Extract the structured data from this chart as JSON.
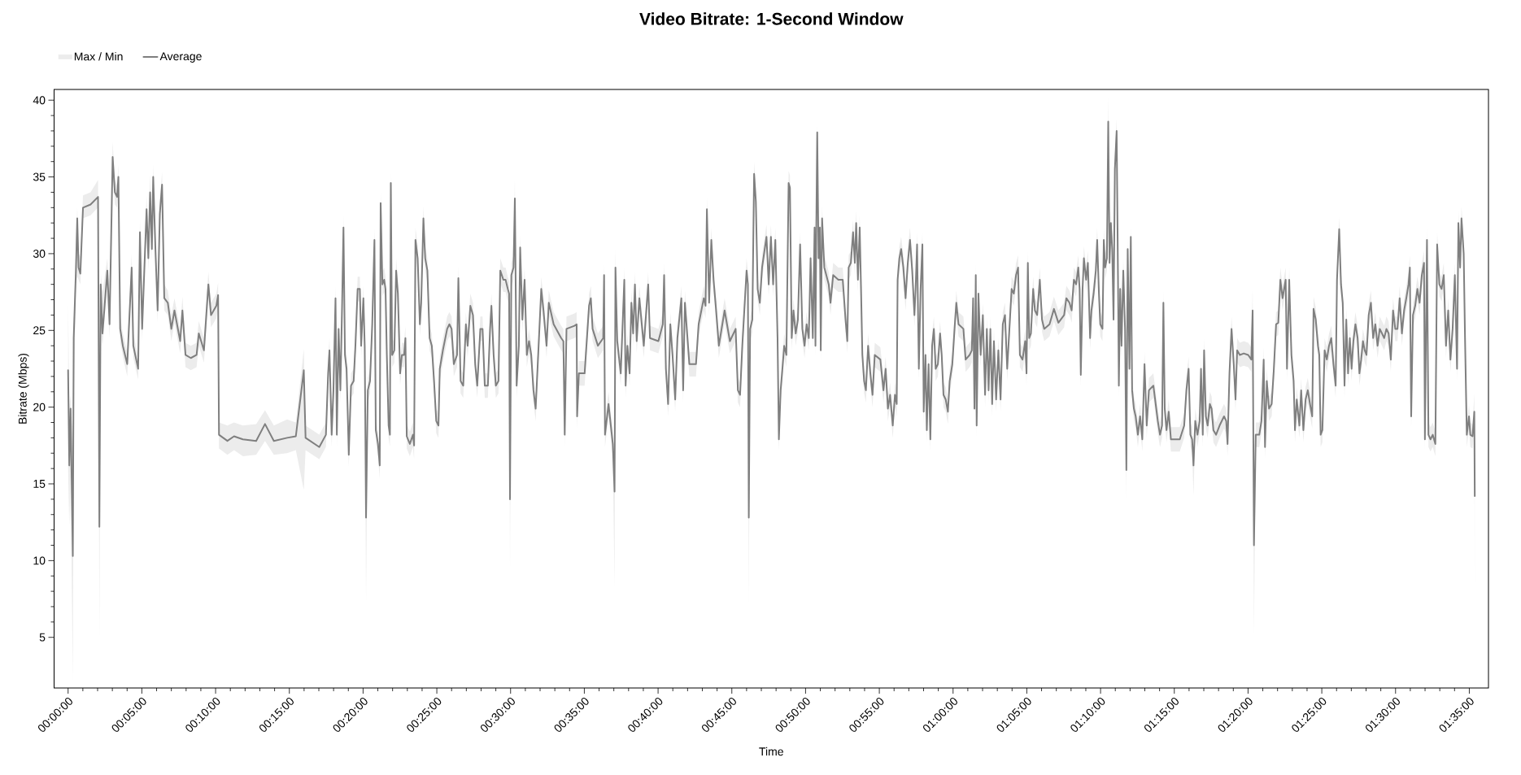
{
  "chart_data": {
    "type": "line",
    "title": "Video Bitrate: 1-Second Window",
    "xlabel": "Time",
    "ylabel": "Bitrate (Mbps)",
    "legend": "top left",
    "annotations": [
      "Max / Min"
    ],
    "xlim": [
      -0.95,
      96.3
    ],
    "ylim": [
      1.7,
      40.7
    ],
    "xticks": [
      {
        "value": 0,
        "label": "00:00:00"
      },
      {
        "value": 5,
        "label": "00:05:00"
      },
      {
        "value": 10,
        "label": "00:10:00"
      },
      {
        "value": 15,
        "label": "00:15:00"
      },
      {
        "value": 20,
        "label": "00:20:00"
      },
      {
        "value": 25,
        "label": "00:25:00"
      },
      {
        "value": 30,
        "label": "00:30:00"
      },
      {
        "value": 35,
        "label": "00:35:00"
      },
      {
        "value": 40,
        "label": "00:40:00"
      },
      {
        "value": 45,
        "label": "00:45:00"
      },
      {
        "value": 50,
        "label": "00:50:00"
      },
      {
        "value": 55,
        "label": "00:55:00"
      },
      {
        "value": 60,
        "label": "01:00:00"
      },
      {
        "value": 65,
        "label": "01:05:00"
      },
      {
        "value": 70,
        "label": "01:10:00"
      },
      {
        "value": 75,
        "label": "01:15:00"
      },
      {
        "value": 80,
        "label": "01:20:00"
      },
      {
        "value": 85,
        "label": "01:25:00"
      },
      {
        "value": 90,
        "label": "01:30:00"
      },
      {
        "value": 95,
        "label": "01:35:00"
      }
    ],
    "yticks": [
      5,
      10,
      15,
      20,
      25,
      30,
      35,
      40
    ],
    "x": [
      0.0,
      0.08,
      0.17,
      0.32,
      0.38,
      0.53,
      0.62,
      0.71,
      0.83,
      1.01,
      1.52,
      2.03,
      2.12,
      2.21,
      2.33,
      2.66,
      2.81,
      3.02,
      3.17,
      3.32,
      3.41,
      3.53,
      3.71,
      4.01,
      4.31,
      4.42,
      4.75,
      4.87,
      5.02,
      5.32,
      5.44,
      5.56,
      5.68,
      5.77,
      5.92,
      6.07,
      6.22,
      6.37,
      6.52,
      6.76,
      7.0,
      7.21,
      7.6,
      7.75,
      7.96,
      8.32,
      8.71,
      8.86,
      9.21,
      9.51,
      9.69,
      10.05,
      10.17,
      10.23,
      10.8,
      11.25,
      11.85,
      12.75,
      13.35,
      13.95,
      14.85,
      15.44,
      15.98,
      16.1,
      17.03,
      17.48,
      17.63,
      17.72,
      17.87,
      17.99,
      18.13,
      18.22,
      18.34,
      18.46,
      18.58,
      18.67,
      18.77,
      18.88,
      19.03,
      19.18,
      19.36,
      19.48,
      19.63,
      19.78,
      19.87,
      20.02,
      20.11,
      20.2,
      20.32,
      20.47,
      20.62,
      20.77,
      20.86,
      21.01,
      21.13,
      21.19,
      21.31,
      21.43,
      21.52,
      21.61,
      21.73,
      21.82,
      21.88,
      21.97,
      22.12,
      22.24,
      22.36,
      22.51,
      22.63,
      22.78,
      22.87,
      22.96,
      23.17,
      23.38,
      23.46,
      23.55,
      23.7,
      23.85,
      23.94,
      24.09,
      24.21,
      24.36,
      24.51,
      24.66,
      24.81,
      24.96,
      25.11,
      25.2,
      25.41,
      25.7,
      25.85,
      26.0,
      26.15,
      26.37,
      26.46,
      26.61,
      26.79,
      26.97,
      27.09,
      27.27,
      27.45,
      27.6,
      27.74,
      27.95,
      28.1,
      28.25,
      28.46,
      28.61,
      28.7,
      28.85,
      29.0,
      29.18,
      29.3,
      29.51,
      29.66,
      29.81,
      29.9,
      29.96,
      30.05,
      30.2,
      30.29,
      30.41,
      30.56,
      30.65,
      30.8,
      30.95,
      31.1,
      31.25,
      31.4,
      31.55,
      31.7,
      32.08,
      32.23,
      32.44,
      32.59,
      32.92,
      33.43,
      33.58,
      33.67,
      33.79,
      34.33,
      34.48,
      34.51,
      34.63,
      35.02,
      35.32,
      35.44,
      35.56,
      35.92,
      36.28,
      36.34,
      36.4,
      36.64,
      36.93,
      37.05,
      37.11,
      37.23,
      37.47,
      37.62,
      37.71,
      37.8,
      37.92,
      38.07,
      38.19,
      38.31,
      38.43,
      38.55,
      38.73,
      39.03,
      39.33,
      39.45,
      40.02,
      40.32,
      40.41,
      40.53,
      40.68,
      40.83,
      40.98,
      41.16,
      41.31,
      41.58,
      41.7,
      41.82,
      42.12,
      42.57,
      42.75,
      43.1,
      43.22,
      43.31,
      43.46,
      43.61,
      43.76,
      43.91,
      44.12,
      44.51,
      44.87,
      45.26,
      45.41,
      45.56,
      45.71,
      46.0,
      46.09,
      46.15,
      46.24,
      46.39,
      46.51,
      46.63,
      46.75,
      46.9,
      47.05,
      47.35,
      47.5,
      47.65,
      47.8,
      47.95,
      48.1,
      48.19,
      48.31,
      48.43,
      48.55,
      48.7,
      48.85,
      48.94,
      49.06,
      49.18,
      49.33,
      49.48,
      49.63,
      49.78,
      49.93,
      50.07,
      50.22,
      50.34,
      50.49,
      50.61,
      50.67,
      50.73,
      50.79,
      50.88,
      50.97,
      51.03,
      51.12,
      51.27,
      51.57,
      51.69,
      51.87,
      52.22,
      52.52,
      52.71,
      52.83,
      52.92,
      53.07,
      53.22,
      53.34,
      53.43,
      53.55,
      53.67,
      53.76,
      53.85,
      53.97,
      54.09,
      54.24,
      54.39,
      54.54,
      54.69,
      55.07,
      55.28,
      55.43,
      55.58,
      55.73,
      55.91,
      56.06,
      56.18,
      56.24,
      56.36,
      56.48,
      56.63,
      56.78,
      56.93,
      57.08,
      57.23,
      57.38,
      57.46,
      57.56,
      57.68,
      57.8,
      57.92,
      58.01,
      58.13,
      58.22,
      58.34,
      58.46,
      58.58,
      58.7,
      58.82,
      58.97,
      59.12,
      59.23,
      59.35,
      59.5,
      59.65,
      59.77,
      59.95,
      60.1,
      60.22,
      60.37,
      60.7,
      60.85,
      61.12,
      61.27,
      61.36,
      61.45,
      61.54,
      61.6,
      61.72,
      61.87,
      62.02,
      62.17,
      62.29,
      62.41,
      62.53,
      62.65,
      62.77,
      62.92,
      63.07,
      63.22,
      63.37,
      63.52,
      63.67,
      63.82,
      63.97,
      64.12,
      64.27,
      64.41,
      64.53,
      64.71,
      64.89,
      64.98,
      65.07,
      65.16,
      65.28,
      65.43,
      65.55,
      65.7,
      65.88,
      66.03,
      66.18,
      66.54,
      66.84,
      67.14,
      67.53,
      67.68,
      67.89,
      68.04,
      68.19,
      68.34,
      68.49,
      68.58,
      68.66,
      68.78,
      68.87,
      69.02,
      69.14,
      69.29,
      69.38,
      69.53,
      69.68,
      69.77,
      69.89,
      69.98,
      70.13,
      70.22,
      70.31,
      70.43,
      70.52,
      70.61,
      70.7,
      70.79,
      70.88,
      70.97,
      71.09,
      71.18,
      71.24,
      71.33,
      71.42,
      71.54,
      71.66,
      71.75,
      71.84,
      71.96,
      72.05,
      72.14,
      72.26,
      72.38,
      72.53,
      72.68,
      72.83,
      72.98,
      73.13,
      73.28,
      73.58,
      73.88,
      74.03,
      74.17,
      74.26,
      74.35,
      74.47,
      74.62,
      74.77,
      75.07,
      75.37,
      75.67,
      75.82,
      75.97,
      76.09,
      76.21,
      76.3,
      76.42,
      76.57,
      76.72,
      76.81,
      76.93,
      77.02,
      77.14,
      77.26,
      77.41,
      77.53,
      77.65,
      77.83,
      78.07,
      78.37,
      78.52,
      78.61,
      78.74,
      78.88,
      79.03,
      79.15,
      79.26,
      79.44,
      79.71,
      80.01,
      80.22,
      80.31,
      80.4,
      80.52,
      80.76,
      80.91,
      81.06,
      81.15,
      81.27,
      81.42,
      81.6,
      81.75,
      81.9,
      82.05,
      82.19,
      82.34,
      82.55,
      82.64,
      82.79,
      82.94,
      83.09,
      83.18,
      83.3,
      83.48,
      83.6,
      83.75,
      83.9,
      84.05,
      84.2,
      84.35,
      84.44,
      84.59,
      84.74,
      84.83,
      84.92,
      85.04,
      85.19,
      85.34,
      85.49,
      85.64,
      85.79,
      85.94,
      86.03,
      86.18,
      86.3,
      86.42,
      86.54,
      86.66,
      86.78,
      86.9,
      87.02,
      87.14,
      87.28,
      87.43,
      87.55,
      87.67,
      87.79,
      87.91,
      88.03,
      88.18,
      88.33,
      88.48,
      88.63,
      88.78,
      88.93,
      89.08,
      89.23,
      89.38,
      89.53,
      89.68,
      89.83,
      89.98,
      90.13,
      90.28,
      90.43,
      90.58,
      90.73,
      90.88,
      90.97,
      91.06,
      91.18,
      91.33,
      91.48,
      91.63,
      91.78,
      91.93,
      91.99,
      92.13,
      92.23,
      92.37,
      92.52,
      92.7,
      92.82,
      92.97,
      93.12,
      93.27,
      93.42,
      93.57,
      93.72,
      93.87,
      94.02,
      94.17,
      94.26,
      94.38,
      94.47,
      94.62,
      94.71,
      94.83,
      94.98,
      95.07,
      95.22,
      95.34,
      95.37
    ],
    "series": [
      {
        "name": "Average",
        "type": "line",
        "color": "#7f7f7f",
        "values": [
          22.4,
          16.2,
          19.9,
          10.3,
          24.5,
          28.9,
          32.3,
          29.1,
          28.7,
          33.0,
          33.2,
          33.7,
          12.2,
          28.0,
          24.8,
          28.9,
          25.4,
          36.3,
          34.0,
          33.7,
          35.0,
          25.1,
          24.0,
          22.8,
          29.1,
          24.0,
          22.5,
          31.4,
          25.1,
          32.9,
          29.7,
          34.0,
          30.3,
          35.0,
          30.3,
          26.3,
          32.6,
          34.5,
          27.1,
          26.8,
          25.1,
          26.3,
          24.3,
          26.3,
          23.4,
          23.2,
          23.4,
          24.8,
          23.7,
          28.0,
          26.0,
          26.6,
          27.3,
          18.2,
          17.8,
          18.1,
          17.9,
          17.8,
          18.9,
          17.8,
          18.0,
          18.1,
          22.4,
          18.0,
          17.4,
          18.2,
          22.2,
          23.7,
          18.2,
          21.1,
          27.1,
          18.2,
          25.1,
          21.1,
          26.8,
          31.7,
          23.4,
          22.5,
          16.9,
          21.4,
          21.7,
          24.0,
          27.7,
          27.7,
          24.0,
          27.1,
          24.0,
          12.8,
          21.1,
          21.7,
          25.4,
          30.9,
          18.5,
          17.6,
          16.2,
          33.3,
          28.0,
          28.3,
          27.7,
          23.4,
          18.8,
          18.2,
          34.6,
          23.4,
          23.7,
          28.9,
          27.4,
          22.2,
          23.4,
          23.4,
          24.5,
          18.1,
          17.6,
          18.2,
          17.5,
          30.9,
          29.7,
          25.4,
          26.8,
          32.3,
          29.7,
          28.9,
          24.5,
          24.0,
          21.7,
          19.1,
          18.8,
          22.5,
          23.7,
          25.1,
          25.4,
          25.1,
          22.8,
          23.4,
          28.4,
          21.7,
          21.4,
          25.4,
          24.0,
          26.6,
          26.0,
          22.8,
          21.4,
          25.1,
          25.1,
          21.4,
          21.4,
          25.1,
          26.6,
          23.4,
          21.4,
          21.7,
          28.9,
          28.3,
          28.3,
          27.7,
          27.4,
          14.0,
          28.6,
          29.1,
          33.6,
          21.4,
          24.0,
          30.4,
          25.7,
          28.3,
          23.4,
          24.3,
          23.4,
          21.1,
          19.9,
          27.7,
          26.3,
          24.0,
          26.8,
          25.4,
          24.5,
          24.3,
          18.2,
          25.1,
          25.3,
          25.4,
          19.4,
          22.2,
          22.2,
          26.6,
          27.1,
          25.1,
          24.0,
          24.5,
          28.6,
          18.2,
          20.2,
          17.6,
          14.5,
          29.1,
          24.3,
          22.2,
          26.0,
          28.3,
          21.4,
          24.0,
          22.2,
          26.8,
          24.8,
          28.0,
          24.3,
          27.1,
          24.0,
          28.0,
          24.5,
          24.3,
          25.4,
          28.6,
          22.5,
          20.2,
          25.4,
          23.4,
          20.5,
          24.5,
          27.1,
          21.1,
          26.8,
          22.8,
          22.8,
          25.4,
          27.1,
          26.6,
          32.9,
          26.8,
          30.9,
          28.3,
          26.6,
          24.0,
          26.3,
          24.3,
          25.1,
          21.1,
          20.8,
          24.0,
          28.9,
          28.0,
          12.8,
          25.1,
          25.7,
          35.2,
          33.4,
          27.7,
          26.8,
          29.1,
          31.1,
          28.0,
          31.1,
          28.0,
          30.9,
          24.5,
          17.9,
          21.1,
          22.5,
          24.0,
          23.4,
          34.6,
          34.3,
          24.5,
          26.3,
          24.8,
          25.7,
          30.6,
          25.1,
          24.0,
          25.4,
          24.5,
          29.7,
          24.5,
          31.7,
          24.0,
          32.0,
          37.9,
          29.7,
          31.7,
          23.7,
          32.3,
          29.1,
          28.0,
          26.8,
          28.6,
          28.3,
          28.3,
          25.7,
          24.3,
          29.1,
          29.4,
          31.4,
          29.4,
          32.0,
          28.3,
          31.7,
          27.7,
          23.4,
          21.7,
          21.1,
          24.0,
          22.2,
          20.8,
          23.4,
          23.1,
          21.1,
          22.5,
          19.9,
          20.8,
          18.8,
          20.8,
          20.2,
          28.3,
          29.7,
          30.3,
          29.1,
          27.1,
          29.4,
          30.9,
          28.9,
          26.0,
          27.7,
          30.6,
          22.5,
          27.7,
          30.6,
          19.7,
          23.4,
          18.5,
          22.8,
          17.9,
          24.0,
          25.1,
          22.5,
          22.8,
          24.8,
          23.4,
          20.8,
          20.5,
          19.7,
          21.7,
          22.8,
          25.1,
          26.8,
          25.4,
          25.1,
          23.1,
          23.4,
          23.7,
          27.1,
          19.9,
          28.6,
          18.8,
          27.4,
          23.4,
          26.0,
          20.8,
          25.1,
          21.1,
          25.1,
          20.2,
          24.3,
          20.5,
          23.7,
          20.5,
          25.4,
          26.0,
          22.5,
          25.1,
          27.7,
          27.4,
          28.6,
          29.1,
          23.4,
          23.1,
          24.3,
          22.2,
          29.4,
          24.5,
          24.8,
          27.7,
          26.3,
          26.0,
          28.3,
          25.7,
          25.1,
          25.4,
          26.4,
          25.5,
          26.0,
          27.1,
          26.8,
          26.3,
          28.3,
          28.0,
          29.1,
          27.7,
          22.1,
          27.7,
          29.7,
          28.3,
          29.4,
          24.5,
          26.3,
          27.4,
          28.9,
          30.9,
          27.4,
          25.4,
          25.1,
          30.9,
          29.1,
          29.7,
          38.6,
          29.4,
          32.0,
          30.3,
          25.7,
          35.5,
          38.0,
          28.6,
          21.4,
          27.7,
          24.0,
          28.9,
          25.1,
          15.9,
          30.3,
          22.5,
          31.1,
          21.1,
          19.9,
          19.4,
          18.2,
          19.4,
          17.9,
          22.8,
          18.8,
          21.1,
          21.4,
          19.1,
          18.2,
          18.8,
          26.8,
          19.9,
          18.5,
          19.7,
          17.9,
          17.9,
          17.9,
          18.8,
          21.1,
          22.5,
          18.2,
          17.9,
          16.2,
          19.1,
          18.2,
          19.1,
          22.5,
          18.2,
          23.7,
          19.4,
          18.8,
          20.2,
          19.9,
          18.5,
          18.2,
          18.8,
          19.4,
          19.1,
          17.6,
          22.2,
          25.1,
          22.8,
          20.5,
          23.7,
          23.4,
          23.5,
          23.4,
          23.1,
          26.3,
          11.0,
          18.2,
          18.2,
          19.1,
          23.1,
          17.4,
          21.7,
          19.9,
          20.2,
          22.5,
          25.4,
          25.5,
          28.3,
          27.1,
          28.3,
          22.5,
          28.3,
          23.4,
          21.7,
          18.5,
          20.5,
          18.8,
          21.1,
          18.5,
          20.5,
          21.1,
          20.2,
          19.4,
          26.4,
          25.7,
          24.0,
          23.4,
          18.2,
          18.5,
          23.7,
          23.1,
          24.0,
          24.5,
          22.8,
          21.4,
          28.3,
          31.6,
          28.0,
          26.8,
          21.4,
          25.7,
          22.2,
          24.5,
          22.5,
          24.3,
          25.4,
          24.5,
          22.2,
          23.1,
          24.3,
          23.7,
          23.4,
          26.0,
          26.8,
          24.5,
          25.4,
          24.0,
          25.1,
          24.8,
          24.5,
          25.1,
          24.8,
          23.1,
          26.3,
          25.1,
          25.1,
          27.1,
          24.8,
          26.3,
          27.1,
          28.0,
          29.1,
          19.4,
          26.0,
          26.6,
          27.7,
          26.8,
          28.6,
          29.4,
          17.9,
          30.9,
          18.2,
          17.9,
          18.2,
          17.6,
          30.6,
          28.0,
          27.7,
          28.6,
          24.0,
          26.3,
          23.1,
          25.1,
          28.6,
          22.5,
          32.0,
          29.1,
          32.3,
          30.0,
          24.5,
          18.2,
          19.4,
          18.2,
          18.1,
          19.7,
          14.2
        ],
        "upper": [
          26.8,
          19.9,
          20.8,
          17.0,
          25.5,
          30.5,
          33.0,
          30.0,
          29.8,
          33.8,
          34.0,
          34.8,
          13.0,
          28.8,
          27.5,
          29.7,
          27.0,
          37.3,
          34.8,
          34.5,
          35.8,
          26.0,
          24.8,
          23.6,
          30.0,
          24.8,
          23.3,
          32.3,
          26.0,
          33.8,
          30.5,
          35.2,
          31.2,
          35.8,
          31.1,
          27.2,
          33.5,
          35.3,
          28.0,
          27.6,
          26.0,
          27.1,
          25.1,
          27.2,
          24.2,
          24.0,
          24.2,
          25.6,
          24.5,
          28.8,
          26.8,
          27.4,
          28.1,
          19.0,
          18.8,
          19.0,
          18.8,
          18.9,
          19.8,
          18.8,
          19.2,
          19.0,
          23.8,
          18.8,
          18.2,
          19.0,
          23.0,
          24.5,
          19.0,
          21.9,
          27.9,
          19.0,
          25.9,
          21.9,
          27.6,
          32.5,
          24.2,
          23.3,
          17.7,
          22.2,
          22.5,
          24.8,
          28.5,
          28.5,
          24.8,
          27.9,
          24.8,
          13.6,
          21.9,
          22.5,
          26.2,
          31.7,
          19.3,
          18.4,
          17.0,
          34.1,
          28.8,
          29.1,
          28.5,
          24.2,
          19.6,
          19.0,
          35.4,
          24.2,
          24.5,
          29.7,
          28.2,
          23.0,
          24.2,
          24.2,
          25.3,
          18.9,
          18.4,
          19.0,
          18.3,
          31.7,
          30.5,
          26.2,
          27.6,
          33.1,
          30.5,
          29.7,
          25.3,
          24.8,
          22.5,
          19.9,
          19.6,
          23.3,
          24.5,
          25.9,
          26.2,
          25.9,
          23.6,
          24.2,
          29.2,
          22.5,
          22.2,
          26.2,
          24.8,
          27.4,
          26.8,
          23.6,
          22.2,
          25.9,
          25.9,
          22.2,
          22.2,
          25.9,
          27.4,
          24.2,
          22.2,
          22.5,
          29.7,
          29.1,
          29.1,
          28.5,
          28.2,
          14.8,
          29.4,
          29.9,
          34.9,
          22.2,
          24.8,
          31.2,
          26.5,
          29.1,
          24.2,
          25.1,
          24.2,
          21.9,
          20.7,
          28.5,
          27.1,
          24.8,
          27.6,
          26.2,
          25.3,
          25.1,
          19.0,
          25.9,
          26.1,
          26.2,
          20.2,
          23.0,
          23.0,
          27.4,
          27.9,
          25.9,
          24.8,
          25.3,
          29.4,
          19.0,
          21.0,
          18.4,
          15.3,
          30.3,
          25.1,
          23.0,
          26.8,
          29.1,
          22.2,
          24.8,
          23.0,
          27.6,
          25.6,
          28.8,
          25.1,
          27.9,
          24.8,
          28.8,
          25.3,
          25.1,
          26.2,
          29.4,
          23.3,
          21.0,
          26.2,
          24.2,
          21.3,
          25.3,
          27.9,
          21.9,
          27.6,
          23.6,
          23.6,
          26.2,
          27.9,
          27.4,
          33.7,
          27.6,
          31.7,
          29.1,
          27.4,
          24.8,
          27.1,
          25.1,
          25.9,
          21.9,
          21.6,
          24.8,
          29.7,
          28.8,
          13.6,
          25.9,
          26.5,
          36.0,
          34.2,
          28.5,
          27.6,
          29.9,
          31.9,
          28.8,
          31.9,
          28.8,
          31.7,
          25.3,
          18.7,
          21.9,
          23.3,
          24.8,
          24.2,
          35.4,
          35.1,
          25.3,
          27.1,
          25.6,
          26.5,
          31.4,
          25.9,
          24.8,
          26.2,
          25.3,
          30.5,
          25.3,
          32.5,
          24.8,
          32.8,
          38.5,
          30.5,
          32.5,
          24.5,
          33.1,
          29.9,
          28.8,
          27.6,
          29.4,
          29.1,
          29.1,
          26.5,
          25.1,
          29.9,
          30.2,
          32.2,
          30.2,
          32.8,
          29.1,
          32.5,
          28.5,
          24.2,
          22.5,
          21.9,
          24.8,
          23.0,
          21.6,
          24.2,
          23.9,
          21.9,
          23.3,
          20.7,
          21.6,
          19.6,
          21.6,
          21.0,
          29.1,
          30.5,
          31.1,
          29.9,
          27.9,
          30.2,
          31.7,
          29.7,
          26.8,
          28.5,
          31.4,
          23.3,
          28.5,
          31.4,
          20.5,
          24.2,
          19.3,
          23.6,
          18.7,
          24.8,
          25.9,
          23.3,
          23.6,
          25.6,
          24.2,
          21.6,
          21.3,
          20.5,
          22.5,
          23.6,
          25.9,
          27.6,
          26.2,
          25.9,
          23.9,
          24.2,
          24.5,
          27.9,
          20.7,
          29.4,
          19.6,
          28.2,
          24.2,
          26.8,
          21.6,
          25.9,
          21.9,
          25.9,
          21.0,
          25.1,
          21.3,
          24.5,
          21.3,
          26.2,
          26.8,
          23.3,
          25.9,
          28.5,
          28.2,
          29.4,
          29.9,
          24.2,
          23.9,
          25.1,
          23.0,
          30.2,
          25.3,
          25.6,
          28.5,
          27.1,
          26.8,
          29.1,
          26.5,
          25.9,
          26.2,
          27.2,
          26.3,
          26.8,
          27.9,
          27.6,
          27.1,
          29.1,
          28.8,
          29.9,
          28.5,
          22.9,
          28.5,
          30.5,
          29.1,
          30.2,
          25.3,
          27.1,
          28.2,
          29.7,
          31.7,
          28.2,
          26.2,
          25.9,
          31.7,
          29.9,
          30.5,
          40.3,
          30.2,
          32.8,
          31.1,
          26.5,
          36.3,
          38.8,
          29.4,
          22.2,
          28.5,
          24.8,
          29.7,
          25.9,
          16.7,
          31.1,
          23.3,
          31.9,
          21.9,
          20.7,
          20.2,
          19.0,
          20.2,
          18.7,
          23.6,
          19.6,
          21.9,
          22.2,
          19.9,
          19.0,
          19.6,
          27.6,
          20.7,
          19.3,
          20.5,
          18.7,
          18.7,
          18.7,
          19.6,
          21.9,
          23.3,
          19.0,
          18.7,
          17.0,
          19.9,
          19.0,
          19.9,
          23.3,
          19.0,
          24.5,
          20.2,
          19.6,
          21.0,
          20.7,
          19.3,
          19.0,
          19.6,
          20.2,
          19.9,
          18.4,
          23.0,
          25.9,
          23.6,
          21.3,
          24.5,
          24.2,
          24.3,
          24.2,
          23.9,
          27.8,
          11.8,
          19.0,
          19.0,
          19.9,
          23.9,
          18.2,
          22.5,
          20.7,
          21.0,
          23.3,
          26.2,
          26.3,
          29.1,
          27.9,
          29.1,
          23.3,
          29.1,
          24.2,
          22.5,
          19.3,
          21.3,
          19.6,
          21.9,
          19.3,
          21.3,
          21.9,
          21.0,
          20.2,
          27.2,
          26.5,
          24.8,
          24.2,
          19.0,
          19.3,
          24.5,
          23.9,
          24.8,
          25.3,
          23.6,
          22.2,
          29.1,
          32.4,
          28.8,
          27.6,
          22.2,
          26.5,
          23.0,
          25.3,
          23.3,
          25.1,
          26.2,
          25.3,
          23.0,
          23.9,
          25.1,
          24.5,
          24.2,
          26.8,
          27.6,
          25.3,
          26.2,
          24.8,
          25.9,
          25.6,
          25.3,
          25.9,
          25.6,
          23.9,
          27.1,
          25.9,
          25.9,
          27.9,
          25.6,
          27.1,
          27.9,
          28.8,
          29.9,
          20.2,
          26.8,
          27.4,
          28.5,
          27.6,
          29.4,
          30.2,
          18.7,
          31.7,
          19.0,
          18.7,
          19.0,
          18.4,
          31.4,
          28.8,
          28.5,
          29.4,
          24.8,
          27.1,
          23.9,
          25.9,
          29.4,
          23.3,
          32.8,
          29.9,
          33.1,
          30.8,
          25.3,
          19.0,
          20.2,
          19.0,
          18.9,
          20.9,
          15.0
        ],
        "lower": [
          16.0,
          12.2,
          15.5,
          2.1,
          20.0,
          28.0,
          28.5,
          28.3,
          28.0,
          32.3,
          32.5,
          33.0,
          4.8,
          25.0,
          24.0,
          28.0,
          24.5,
          35.5,
          33.2,
          33.0,
          34.2,
          24.3,
          23.3,
          22.0,
          28.3,
          23.2,
          21.8,
          30.5,
          24.3,
          32.0,
          28.9,
          33.2,
          29.5,
          34.2,
          29.5,
          25.5,
          31.8,
          33.7,
          26.3,
          26.0,
          24.3,
          25.5,
          23.5,
          25.5,
          22.6,
          22.4,
          22.6,
          24.0,
          22.9,
          27.2,
          25.2,
          25.8,
          26.5,
          17.3,
          16.9,
          17.2,
          16.8,
          16.9,
          17.8,
          16.9,
          17.0,
          17.2,
          14.6,
          17.2,
          16.6,
          17.4,
          21.4,
          22.9,
          17.4,
          20.3,
          26.3,
          17.4,
          24.3,
          20.3,
          26.0,
          30.9,
          22.6,
          21.7,
          16.1,
          20.6,
          20.9,
          23.2,
          26.9,
          26.9,
          23.2,
          26.3,
          23.2,
          7.3,
          20.3,
          20.9,
          24.6,
          30.1,
          17.7,
          16.8,
          15.3,
          32.5,
          27.2,
          27.5,
          26.9,
          22.6,
          18.0,
          17.4,
          33.8,
          22.6,
          22.9,
          28.1,
          26.6,
          21.4,
          22.6,
          22.6,
          23.7,
          17.3,
          16.8,
          17.4,
          16.6,
          30.1,
          28.9,
          24.6,
          26.0,
          31.5,
          28.9,
          28.1,
          23.7,
          23.2,
          20.9,
          18.3,
          18.0,
          21.7,
          22.9,
          24.3,
          24.6,
          24.3,
          22.0,
          22.6,
          27.6,
          20.9,
          20.6,
          24.6,
          23.2,
          25.8,
          25.2,
          22.0,
          20.6,
          24.3,
          24.3,
          20.6,
          20.6,
          24.3,
          25.8,
          22.6,
          20.6,
          20.9,
          28.1,
          27.5,
          27.5,
          26.9,
          26.6,
          9.2,
          27.8,
          28.3,
          32.8,
          20.6,
          23.2,
          29.6,
          24.9,
          27.5,
          22.6,
          23.5,
          22.6,
          20.3,
          19.1,
          26.9,
          25.5,
          23.2,
          26.0,
          24.6,
          23.7,
          23.5,
          17.4,
          24.3,
          24.5,
          24.6,
          18.6,
          21.4,
          21.4,
          25.8,
          26.3,
          24.3,
          23.2,
          23.7,
          27.8,
          17.4,
          19.4,
          16.8,
          8.2,
          28.3,
          23.5,
          21.4,
          25.2,
          27.5,
          20.6,
          23.2,
          21.4,
          26.0,
          24.0,
          27.2,
          23.5,
          26.3,
          23.2,
          27.2,
          23.7,
          23.5,
          24.6,
          27.8,
          21.7,
          19.4,
          24.6,
          22.6,
          19.7,
          23.7,
          26.3,
          20.3,
          26.0,
          22.0,
          22.0,
          24.6,
          26.3,
          25.8,
          32.1,
          26.0,
          30.1,
          27.5,
          25.8,
          23.2,
          25.5,
          23.5,
          24.3,
          20.3,
          20.0,
          23.2,
          28.1,
          27.2,
          7.0,
          24.3,
          24.9,
          34.4,
          32.6,
          26.9,
          26.0,
          28.3,
          30.3,
          27.2,
          30.3,
          27.2,
          30.1,
          23.7,
          17.1,
          20.3,
          21.7,
          23.2,
          22.6,
          33.8,
          33.5,
          23.7,
          25.5,
          24.0,
          24.9,
          29.8,
          24.3,
          23.2,
          24.6,
          23.7,
          28.9,
          23.7,
          30.9,
          23.2,
          31.2,
          37.1,
          28.9,
          30.9,
          22.9,
          31.5,
          28.3,
          27.2,
          26.0,
          27.8,
          27.5,
          27.5,
          24.9,
          23.5,
          28.3,
          28.6,
          30.6,
          28.6,
          31.2,
          27.5,
          30.9,
          26.9,
          22.6,
          20.9,
          20.3,
          23.2,
          21.4,
          20.0,
          22.6,
          22.3,
          20.3,
          21.7,
          19.1,
          20.0,
          18.0,
          20.0,
          19.4,
          27.5,
          28.9,
          29.5,
          28.3,
          26.3,
          28.6,
          30.1,
          28.1,
          25.2,
          26.9,
          29.8,
          21.7,
          26.9,
          29.8,
          18.9,
          22.6,
          17.7,
          22.0,
          17.1,
          23.2,
          24.3,
          21.7,
          22.0,
          24.0,
          22.6,
          20.0,
          19.7,
          18.9,
          20.9,
          22.0,
          24.3,
          26.0,
          24.6,
          24.3,
          22.3,
          22.6,
          22.9,
          26.3,
          19.1,
          27.8,
          18.0,
          26.6,
          22.6,
          25.2,
          20.0,
          24.3,
          20.3,
          24.3,
          19.4,
          23.5,
          19.7,
          22.9,
          19.7,
          24.6,
          25.2,
          21.7,
          24.3,
          26.9,
          26.6,
          27.8,
          28.3,
          22.6,
          22.3,
          23.5,
          21.4,
          28.6,
          23.7,
          24.0,
          26.9,
          25.5,
          25.2,
          27.5,
          24.9,
          24.3,
          24.6,
          25.6,
          24.7,
          25.2,
          26.3,
          26.0,
          25.5,
          27.5,
          27.2,
          28.3,
          26.9,
          21.3,
          26.9,
          28.9,
          27.5,
          28.6,
          23.7,
          25.5,
          26.6,
          28.1,
          30.1,
          26.6,
          24.6,
          24.3,
          30.1,
          28.3,
          28.9,
          37.8,
          28.6,
          31.2,
          29.5,
          24.9,
          34.7,
          37.2,
          27.8,
          20.6,
          26.9,
          23.2,
          28.1,
          24.3,
          14.0,
          29.5,
          21.7,
          30.3,
          20.3,
          19.1,
          18.6,
          17.4,
          18.6,
          17.1,
          22.0,
          18.0,
          20.3,
          20.6,
          18.3,
          17.4,
          18.0,
          26.0,
          19.1,
          17.7,
          18.9,
          17.1,
          17.1,
          17.1,
          18.0,
          20.3,
          21.7,
          17.4,
          17.1,
          14.2,
          18.3,
          17.4,
          18.3,
          21.7,
          17.4,
          22.9,
          18.6,
          18.0,
          19.4,
          19.1,
          17.7,
          17.4,
          18.0,
          18.6,
          18.3,
          16.8,
          21.4,
          24.3,
          22.0,
          19.7,
          22.9,
          22.6,
          22.7,
          22.6,
          22.3,
          25.5,
          5.1,
          17.4,
          17.4,
          18.3,
          22.3,
          16.6,
          20.9,
          19.1,
          19.4,
          21.7,
          24.6,
          24.7,
          27.5,
          26.3,
          27.5,
          21.7,
          27.5,
          22.6,
          20.9,
          17.7,
          19.7,
          18.0,
          20.3,
          17.7,
          19.7,
          20.3,
          19.4,
          18.6,
          25.6,
          24.9,
          23.2,
          22.6,
          17.4,
          17.7,
          22.9,
          22.3,
          23.2,
          23.7,
          22.0,
          20.6,
          27.5,
          30.8,
          27.2,
          26.0,
          20.6,
          24.9,
          21.4,
          23.7,
          21.7,
          23.5,
          24.6,
          23.7,
          21.4,
          22.3,
          23.5,
          22.9,
          22.6,
          25.2,
          26.0,
          23.7,
          24.6,
          23.2,
          24.3,
          24.0,
          23.7,
          24.3,
          24.0,
          22.3,
          25.5,
          24.3,
          24.3,
          26.3,
          24.0,
          25.5,
          26.3,
          27.2,
          28.3,
          18.6,
          25.2,
          25.8,
          26.9,
          26.0,
          27.8,
          28.6,
          17.1,
          30.1,
          17.4,
          17.1,
          17.4,
          16.8,
          29.8,
          27.2,
          26.9,
          27.8,
          23.2,
          25.5,
          22.3,
          24.3,
          27.8,
          21.7,
          31.2,
          28.3,
          31.5,
          29.2,
          23.7,
          17.4,
          18.6,
          17.4,
          17.3,
          18.9,
          7.9
        ]
      }
    ]
  }
}
